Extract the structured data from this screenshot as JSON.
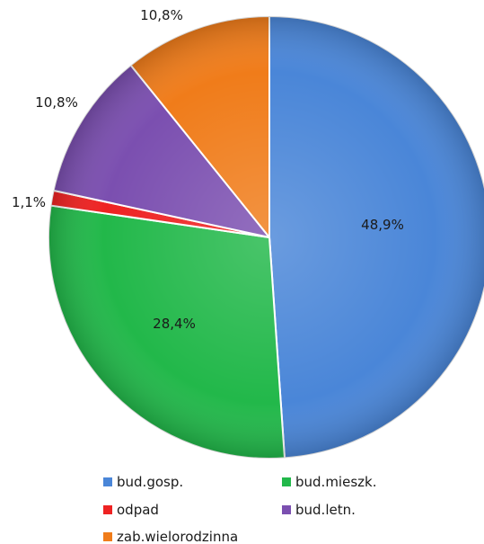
{
  "chart_data": {
    "type": "pie",
    "title": "",
    "slices": [
      {
        "name": "bud.gosp.",
        "value": 48.9,
        "label": "48,9%",
        "color": "#4a86d8"
      },
      {
        "name": "bud.mieszk.",
        "value": 28.4,
        "label": "28,4%",
        "color": "#22b84a"
      },
      {
        "name": "odpad",
        "value": 1.1,
        "label": "1,1%",
        "color": "#ee2222"
      },
      {
        "name": "bud.letn.",
        "value": 10.8,
        "label": "10,8%",
        "color": "#7b4fb0"
      },
      {
        "name": "zab.wielorodzinna",
        "value": 10.8,
        "label": "10,8%",
        "color": "#f07c1a"
      }
    ],
    "legend": {
      "position": "bottom",
      "entries": [
        "bud.gosp.",
        "bud.mieszk.",
        "odpad",
        "bud.letn.",
        "zab.wielorodzinna"
      ]
    }
  }
}
